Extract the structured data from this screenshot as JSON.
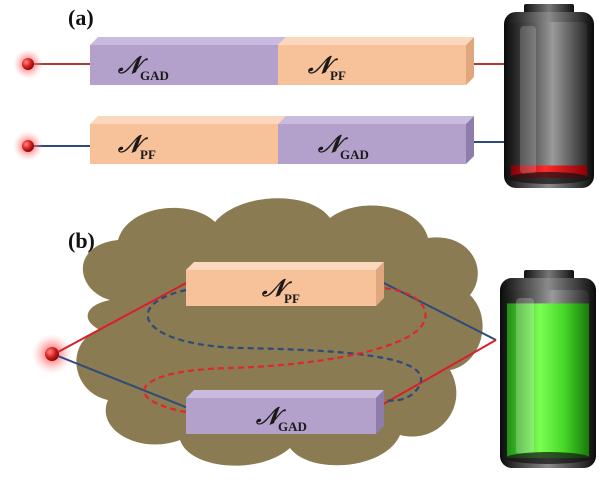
{
  "panel_a": {
    "label": "(a)",
    "top_row": {
      "first_symbol": "𝒩",
      "first_sub": "GAD",
      "second_symbol": "𝒩",
      "second_sub": "PF",
      "wire_color": "#b03a2e"
    },
    "bottom_row": {
      "first_symbol": "𝒩",
      "first_sub": "PF",
      "second_symbol": "𝒩",
      "second_sub": "GAD",
      "wire_color": "#2e4a7a"
    },
    "battery_level": 0.08,
    "battery_fill_color": "#e0141c"
  },
  "panel_b": {
    "label": "(b)",
    "upper_channel": {
      "symbol": "𝒩",
      "sub": "PF"
    },
    "lower_channel": {
      "symbol": "𝒩",
      "sub": "GAD"
    },
    "cloud_color": "#8a7b52",
    "battery_level": 0.92,
    "battery_fill_color": "#3fd12a"
  },
  "colors": {
    "pf_box": "#f7c19a",
    "gad_box": "#b3a1cc",
    "red_path": "#e0262a",
    "blue_path": "#2e4a7a",
    "particle": "#d81e1e"
  }
}
